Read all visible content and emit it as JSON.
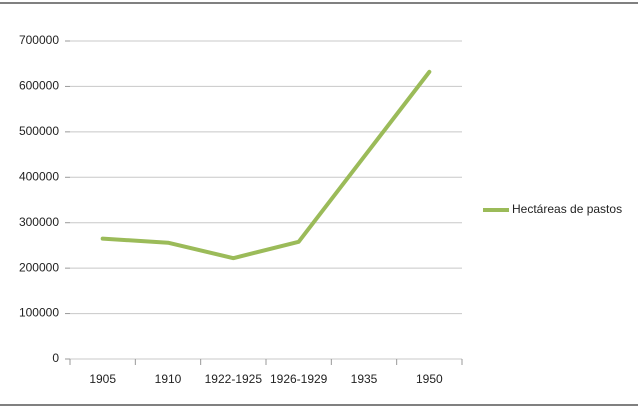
{
  "chart_data": {
    "type": "line",
    "categories": [
      "1905",
      "1910",
      "1922-1925",
      "1926-1929",
      "1935",
      "1950"
    ],
    "series": [
      {
        "name": "Hectáreas de pastos",
        "color": "#9bbb59",
        "values": [
          265000,
          256000,
          222000,
          258000,
          445000,
          632000
        ]
      }
    ],
    "ylim": [
      0,
      700000
    ],
    "yticks": [
      0,
      100000,
      200000,
      300000,
      400000,
      500000,
      600000,
      700000
    ],
    "grid": true,
    "legend": "right"
  }
}
